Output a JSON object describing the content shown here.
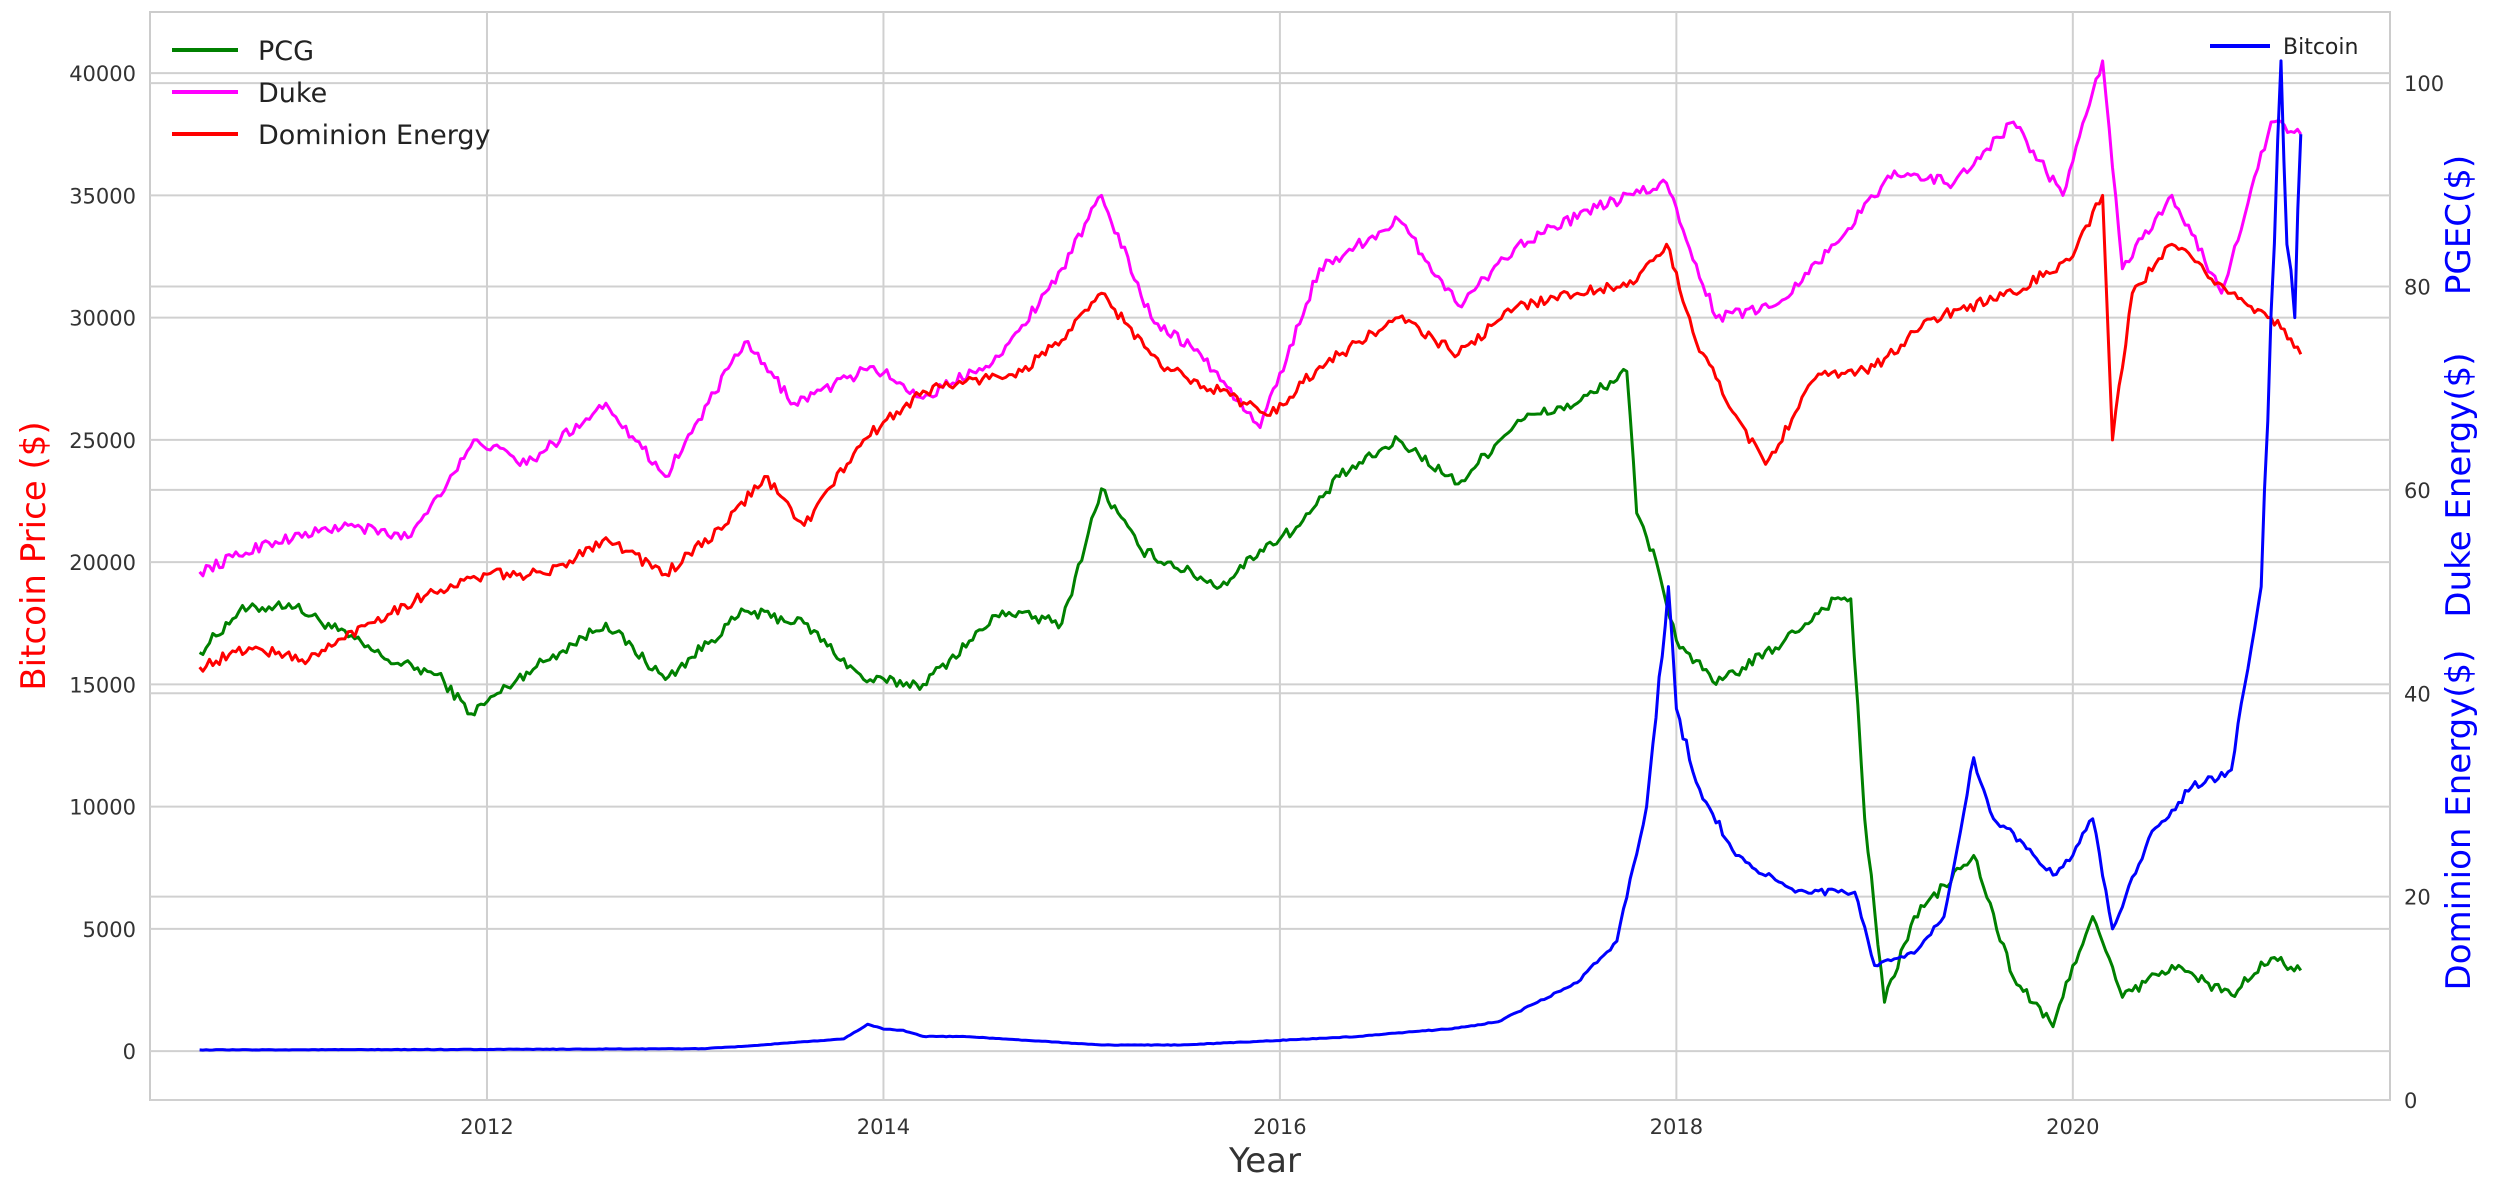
{
  "chart_data": {
    "type": "line",
    "xlabel": "Year",
    "ylabel_left": "Bitcoin Price ($)",
    "ylabels_right": [
      "PGEC($)",
      "Duke Energy($)",
      "Dominion Energy($)"
    ],
    "xlim": [
      2010.3,
      2021.6
    ],
    "ylim_left": [
      -2000,
      42500
    ],
    "ylim_right": [
      0,
      107
    ],
    "x_ticks": [
      2012,
      2014,
      2016,
      2018,
      2020
    ],
    "y_ticks_left": [
      0,
      5000,
      10000,
      15000,
      20000,
      25000,
      30000,
      35000,
      40000
    ],
    "y_ticks_right": [
      0,
      20,
      40,
      60,
      80,
      100
    ],
    "grid": true,
    "legend_left": {
      "placement": "top-left",
      "entries": [
        "PCG",
        "Duke",
        "Dominion Energy"
      ]
    },
    "legend_right": {
      "placement": "top-right",
      "entries": [
        "Bitcoin"
      ]
    },
    "colors": {
      "PCG": "#008000",
      "Duke": "#ff00ff",
      "Dominion Energy": "#ff0000",
      "Bitcoin": "#0000ff",
      "left_axis_label": "#ff0000",
      "right_axis_label": "#0000ff"
    },
    "series": [
      {
        "name": "PCG",
        "axis": "left",
        "x": [
          2010.55,
          2010.75,
          2011.0,
          2011.25,
          2011.5,
          2011.75,
          2011.92,
          2012.2,
          2012.6,
          2012.9,
          2013.3,
          2013.6,
          2013.9,
          2014.2,
          2014.6,
          2014.9,
          2015.1,
          2015.3,
          2015.7,
          2015.9,
          2016.1,
          2016.3,
          2016.6,
          2016.9,
          2017.2,
          2017.5,
          2017.75,
          2017.8,
          2017.9,
          2018.0,
          2018.2,
          2018.5,
          2018.8,
          2018.88,
          2018.95,
          2019.05,
          2019.2,
          2019.5,
          2019.7,
          2019.9,
          2020.0,
          2020.1,
          2020.25,
          2020.5,
          2020.8,
          2021.0,
          2021.15
        ],
        "y": [
          16300,
          18000,
          18300,
          17200,
          16000,
          15400,
          13800,
          15500,
          17500,
          15200,
          18000,
          17500,
          15200,
          15000,
          18000,
          17500,
          23000,
          20500,
          19000,
          20500,
          21500,
          23500,
          25000,
          23200,
          25800,
          26500,
          27800,
          22000,
          20000,
          16800,
          15000,
          16500,
          18500,
          18500,
          9500,
          2000,
          5500,
          8000,
          3000,
          1000,
          3500,
          5500,
          2200,
          3500,
          2300,
          3800,
          3300
        ]
      },
      {
        "name": "Duke",
        "axis": "left",
        "x": [
          2010.55,
          2010.9,
          2011.3,
          2011.6,
          2011.95,
          2012.2,
          2012.6,
          2012.9,
          2013.3,
          2013.55,
          2013.95,
          2014.2,
          2014.6,
          2014.9,
          2015.1,
          2015.35,
          2015.6,
          2015.9,
          2016.2,
          2016.6,
          2016.9,
          2017.2,
          2017.6,
          2017.95,
          2018.2,
          2018.5,
          2018.8,
          2019.1,
          2019.4,
          2019.7,
          2019.95,
          2020.15,
          2020.25,
          2020.5,
          2020.75,
          2021.0,
          2021.15
        ],
        "y": [
          19600,
          20800,
          21500,
          21000,
          25000,
          24000,
          26500,
          23500,
          29000,
          26500,
          28000,
          26700,
          28500,
          32000,
          35000,
          30000,
          28500,
          25500,
          32000,
          34000,
          30500,
          33000,
          34500,
          35500,
          30000,
          30500,
          33000,
          36000,
          35500,
          38000,
          35000,
          40500,
          32000,
          35000,
          31000,
          38000,
          37500
        ]
      },
      {
        "name": "Dominion Energy",
        "axis": "left",
        "x": [
          2010.55,
          2010.8,
          2011.1,
          2011.4,
          2011.7,
          2012.0,
          2012.3,
          2012.6,
          2012.9,
          2013.2,
          2013.4,
          2013.6,
          2013.9,
          2014.2,
          2014.5,
          2014.7,
          2014.95,
          2015.1,
          2015.4,
          2015.7,
          2015.95,
          2016.2,
          2016.6,
          2016.9,
          2017.2,
          2017.5,
          2017.8,
          2017.95,
          2018.1,
          2018.3,
          2018.45,
          2018.7,
          2019.0,
          2019.3,
          2019.7,
          2020.0,
          2020.15,
          2020.2,
          2020.3,
          2020.5,
          2020.8,
          2021.0,
          2021.15
        ],
        "y": [
          15700,
          16500,
          16000,
          17500,
          18700,
          19500,
          19500,
          21000,
          19500,
          21500,
          23500,
          21500,
          25000,
          27000,
          27500,
          27800,
          29500,
          31000,
          28000,
          27000,
          26000,
          28000,
          30000,
          28500,
          30500,
          31000,
          31500,
          33000,
          29000,
          26000,
          24000,
          27500,
          28000,
          30000,
          31000,
          32500,
          35000,
          25000,
          31000,
          33000,
          31000,
          30000,
          28500
        ]
      },
      {
        "name": "Bitcoin",
        "axis": "left",
        "x": [
          2010.55,
          2011.5,
          2012.5,
          2013.1,
          2013.3,
          2013.8,
          2013.92,
          2014.0,
          2014.1,
          2014.2,
          2014.4,
          2014.8,
          2015.1,
          2015.5,
          2015.9,
          2016.4,
          2016.9,
          2017.1,
          2017.3,
          2017.5,
          2017.7,
          2017.85,
          2017.96,
          2018.0,
          2018.1,
          2018.3,
          2018.5,
          2018.6,
          2018.9,
          2019.0,
          2019.2,
          2019.35,
          2019.5,
          2019.6,
          2019.75,
          2019.9,
          2020.0,
          2020.1,
          2020.2,
          2020.4,
          2020.6,
          2020.8,
          2020.95,
          2021.05,
          2021.08,
          2021.12,
          2021.15
        ],
        "y": [
          50,
          60,
          80,
          100,
          200,
          500,
          1100,
          900,
          850,
          600,
          600,
          400,
          250,
          250,
          400,
          600,
          950,
          1200,
          2000,
          2800,
          4500,
          10000,
          19000,
          14000,
          11000,
          8000,
          7000,
          6500,
          6500,
          3500,
          4000,
          5500,
          12000,
          9500,
          8500,
          7200,
          8000,
          9500,
          5000,
          9000,
          10800,
          11500,
          19000,
          40500,
          33000,
          30000,
          37500
        ]
      }
    ]
  }
}
